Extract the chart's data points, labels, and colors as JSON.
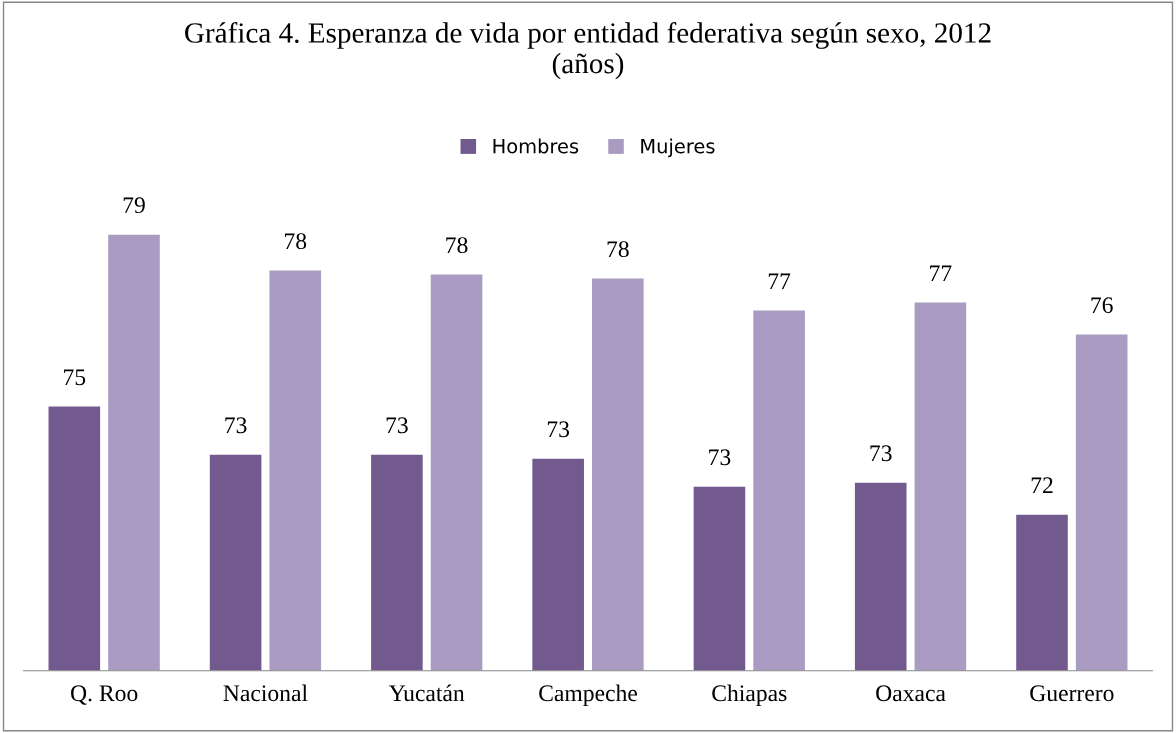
{
  "chart_data": {
    "type": "bar",
    "title": "Gráfica 4. Esperanza de vida por entidad federativa según sexo, 2012\n(años)",
    "categories": [
      "Q. Roo",
      "Nacional",
      "Yucatán",
      "Campeche",
      "Chiapas",
      "Oaxaca",
      "Guerrero"
    ],
    "ylim": [
      68,
      78.9
    ],
    "legend": "top",
    "series": [
      {
        "name": "Hombres",
        "color": "#725a8f",
        "values": [
          74.6,
          73.4,
          73.4,
          73.3,
          72.6,
          72.7,
          71.9
        ],
        "value_labels": [
          "75",
          "73",
          "73",
          "73",
          "73",
          "73",
          "72"
        ]
      },
      {
        "name": "Mujeres",
        "color": "#a99bc1",
        "values": [
          78.9,
          78.0,
          77.9,
          77.8,
          77.0,
          77.2,
          76.4
        ],
        "value_labels": [
          "79",
          "78",
          "78",
          "78",
          "77",
          "77",
          "76"
        ]
      }
    ]
  }
}
